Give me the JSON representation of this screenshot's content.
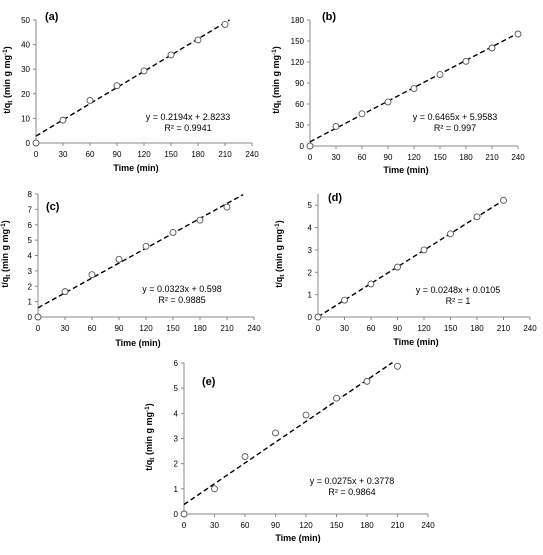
{
  "chart_data": [
    {
      "panel": "(a)",
      "type": "scatter",
      "xlabel": "Time (min)",
      "ylabel": "t/q",
      "ylabel_sub": "t",
      "ylabel_units": "(min g mg",
      "ylabel_sup": "-1",
      "ylabel_close": ")",
      "xlim": [
        0,
        240
      ],
      "ylim": [
        0,
        50
      ],
      "xticks": [
        "0",
        "30",
        "60",
        "90",
        "120",
        "150",
        "180",
        "210",
        "240"
      ],
      "yticks": [
        "0",
        "10",
        "20",
        "30",
        "40",
        "50"
      ],
      "x": [
        0,
        30,
        60,
        90,
        120,
        150,
        180,
        210
      ],
      "y": [
        0,
        9.3,
        17.3,
        23.3,
        29.3,
        35.8,
        41.9,
        48.2
      ],
      "trendline": {
        "slope": 0.2194,
        "intercept": 2.8233,
        "x_end": 215
      },
      "equation": "y = 0.2194x + 2.8233",
      "r2": "R² = 0.9941"
    },
    {
      "panel": "(b)",
      "type": "scatter",
      "xlabel": "Time (min)",
      "ylabel": "t/q",
      "ylabel_sub": "t",
      "ylabel_units": "(min g mg",
      "ylabel_sup": "-1",
      "ylabel_close": ")",
      "xlim": [
        0,
        240
      ],
      "ylim": [
        0,
        180
      ],
      "xticks": [
        "0",
        "30",
        "60",
        "90",
        "120",
        "150",
        "180",
        "210",
        "240"
      ],
      "yticks": [
        "0",
        "30",
        "60",
        "90",
        "120",
        "150",
        "180"
      ],
      "x": [
        0,
        30,
        60,
        90,
        120,
        150,
        180,
        210,
        240
      ],
      "y": [
        0,
        28,
        46,
        63,
        82,
        102,
        121,
        140,
        160
      ],
      "trendline": {
        "slope": 0.6465,
        "intercept": 5.9583,
        "x_end": 240
      },
      "equation": "y = 0.6465x + 5.9583",
      "r2": "R² = 0.997"
    },
    {
      "panel": "(c)",
      "type": "scatter",
      "xlabel": "Time (min)",
      "ylabel": "t/q",
      "ylabel_sub": "t",
      "ylabel_units": "(min g mg",
      "ylabel_sup": "-1",
      "ylabel_close": ")",
      "xlim": [
        0,
        240
      ],
      "ylim": [
        0,
        8
      ],
      "xticks": [
        "0",
        "30",
        "60",
        "90",
        "120",
        "150",
        "180",
        "210",
        "240"
      ],
      "yticks": [
        "0",
        "1",
        "2",
        "3",
        "4",
        "5",
        "6",
        "7",
        "8"
      ],
      "x": [
        0,
        30,
        60,
        90,
        120,
        150,
        180,
        210
      ],
      "y": [
        0,
        1.65,
        2.75,
        3.75,
        4.6,
        5.5,
        6.3,
        7.15
      ],
      "trendline": {
        "slope": 0.0323,
        "intercept": 0.598,
        "x_end": 228
      },
      "equation": "y = 0.0323x + 0.598",
      "r2": "R² = 0.9885"
    },
    {
      "panel": "(d)",
      "type": "scatter",
      "xlabel": "Time (min)",
      "ylabel": "t/q",
      "ylabel_sub": "t",
      "ylabel_units": "(min g mg",
      "ylabel_sup": "-1",
      "ylabel_close": ")",
      "xlim": [
        0,
        240
      ],
      "ylim": [
        0,
        5.5
      ],
      "xticks": [
        "0",
        "30",
        "60",
        "90",
        "120",
        "150",
        "180",
        "210",
        "240"
      ],
      "yticks": [
        "0",
        "1",
        "2",
        "3",
        "4",
        "5"
      ],
      "x": [
        0,
        30,
        60,
        90,
        120,
        150,
        180,
        210
      ],
      "y": [
        0,
        0.75,
        1.48,
        2.23,
        3.0,
        3.72,
        4.48,
        5.22
      ],
      "trendline": {
        "slope": 0.0248,
        "intercept": 0.0105,
        "x_end": 212
      },
      "equation": "y = 0.0248x + 0.0105",
      "r2": "R² = 1"
    },
    {
      "panel": "(e)",
      "type": "scatter",
      "xlabel": "Time (min)",
      "ylabel": "t/q",
      "ylabel_sub": "t",
      "ylabel_units": "(min g mg",
      "ylabel_sup": "-1",
      "ylabel_close": ")",
      "xlim": [
        0,
        240
      ],
      "ylim": [
        0,
        6
      ],
      "xticks": [
        "0",
        "30",
        "60",
        "90",
        "120",
        "150",
        "180",
        "210",
        "240"
      ],
      "yticks": [
        "0",
        "1",
        "2",
        "3",
        "4",
        "5",
        "6"
      ],
      "x": [
        0,
        30,
        60,
        90,
        120,
        150,
        180,
        210
      ],
      "y": [
        0,
        1.0,
        2.28,
        3.22,
        3.93,
        4.6,
        5.27,
        5.87
      ],
      "trendline": {
        "slope": 0.0275,
        "intercept": 0.3778,
        "x_end": 205
      },
      "equation": "y = 0.0275x + 0.3778",
      "r2": "R² = 0.9864"
    }
  ],
  "colors": {
    "axis": "#888888",
    "text": "#000000",
    "marker_stroke": "#555555",
    "trend": "#000000"
  }
}
